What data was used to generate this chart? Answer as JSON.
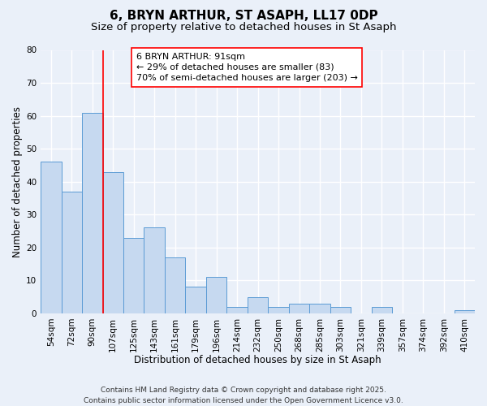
{
  "title": "6, BRYN ARTHUR, ST ASAPH, LL17 0DP",
  "subtitle": "Size of property relative to detached houses in St Asaph",
  "xlabel": "Distribution of detached houses by size in St Asaph",
  "ylabel": "Number of detached properties",
  "bar_labels": [
    "54sqm",
    "72sqm",
    "90sqm",
    "107sqm",
    "125sqm",
    "143sqm",
    "161sqm",
    "179sqm",
    "196sqm",
    "214sqm",
    "232sqm",
    "250sqm",
    "268sqm",
    "285sqm",
    "303sqm",
    "321sqm",
    "339sqm",
    "357sqm",
    "374sqm",
    "392sqm",
    "410sqm"
  ],
  "bar_values": [
    46,
    37,
    61,
    43,
    23,
    26,
    17,
    8,
    11,
    2,
    5,
    2,
    3,
    3,
    2,
    0,
    2,
    0,
    0,
    0,
    1
  ],
  "bar_color": "#c6d9f0",
  "bar_edge_color": "#5b9bd5",
  "vline_index": 2,
  "vline_color": "red",
  "annotation_title": "6 BRYN ARTHUR: 91sqm",
  "annotation_line1": "← 29% of detached houses are smaller (83)",
  "annotation_line2": "70% of semi-detached houses are larger (203) →",
  "annotation_box_color": "white",
  "annotation_box_edge_color": "red",
  "ylim": [
    0,
    80
  ],
  "yticks": [
    0,
    10,
    20,
    30,
    40,
    50,
    60,
    70,
    80
  ],
  "background_color": "#eaf0f9",
  "grid_color": "white",
  "footer_line1": "Contains HM Land Registry data © Crown copyright and database right 2025.",
  "footer_line2": "Contains public sector information licensed under the Open Government Licence v3.0.",
  "title_fontsize": 11,
  "subtitle_fontsize": 9.5,
  "axis_label_fontsize": 8.5,
  "tick_fontsize": 7.5,
  "annotation_fontsize": 8,
  "footer_fontsize": 6.5
}
